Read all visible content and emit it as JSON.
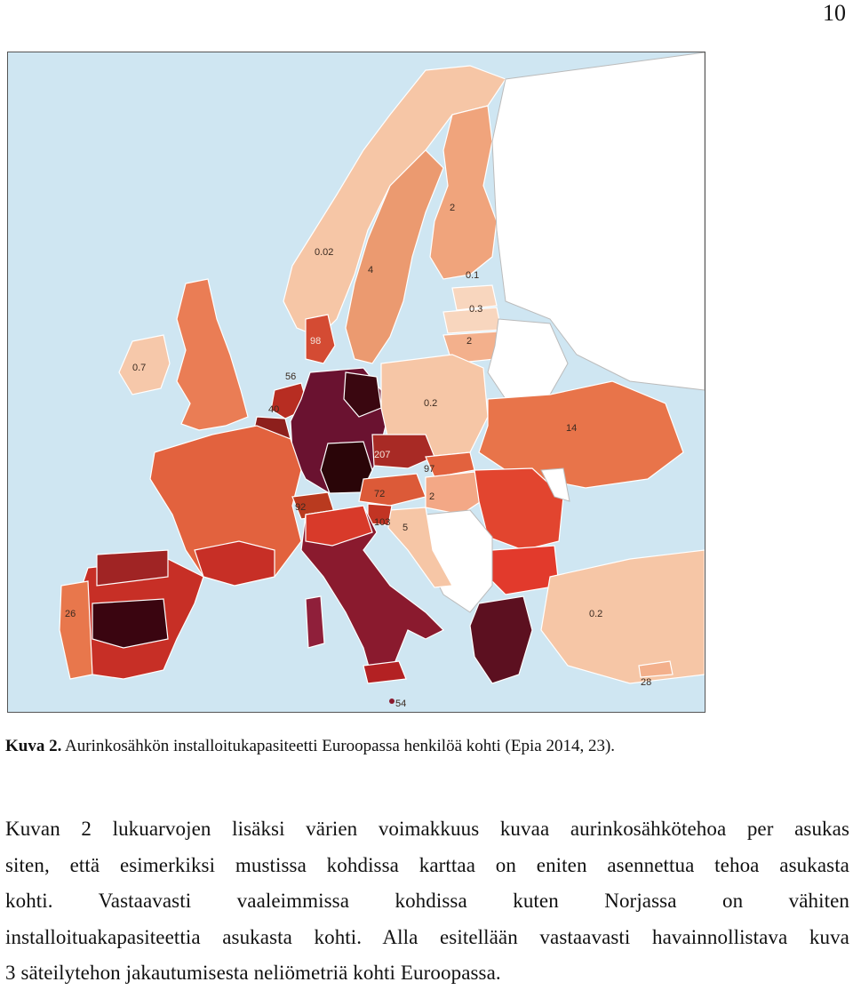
{
  "page_number": "10",
  "figure": {
    "labels": {
      "norway": "0.02",
      "sweden": "4",
      "finland": "2",
      "estonia": "0.1",
      "latvia": "0.3",
      "lithuania": "2",
      "denmark": "98",
      "ireland": "0.7",
      "netherlands": "56",
      "belgium": "40",
      "poland": "0.2",
      "ukraine": "14",
      "czechia": "207",
      "slovakia": "97",
      "austria": "72",
      "hungary": "2",
      "switzerland": "92",
      "slovenia": "103",
      "croatia": "5",
      "portugal": "26",
      "malta": "54",
      "turkey": "0.2",
      "cyprus": "28"
    }
  },
  "caption": {
    "prefix": "Kuva 2.",
    "text": " Aurinkosähkön installoitukapasiteetti Euroopassa henkilöä kohti (Epia 2014, 23)."
  },
  "body": {
    "lines": [
      "Kuvan 2 lukuarvojen lisäksi värien voimakkuus kuvaa aurinkosähkötehoa per asukas",
      "siten, että esimerkiksi mustissa kohdissa karttaa on eniten asennettua tehoa asukasta",
      "kohti. Vastaavasti vaaleimmissa kohdissa kuten Norjassa on vähiten",
      "installoituakapasiteettia asukasta kohti. Alla esitellään vastaavasti havainnollistava kuva",
      "3 säteilytehon jakautumisesta neliömetriä kohti Euroopassa."
    ]
  }
}
